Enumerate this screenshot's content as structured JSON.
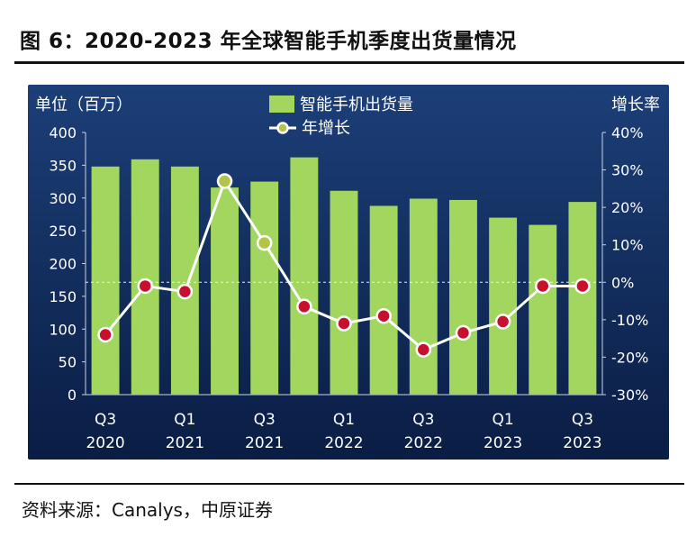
{
  "figure": {
    "title": "图 6：2020-2023 年全球智能手机季度出货量情况",
    "source": "资料来源：Canalys，中原证券"
  },
  "colors": {
    "background_top": "#1c3f78",
    "background_bottom": "#0a1d44",
    "bar": "#a2d65e",
    "line": "#ffffff",
    "marker_fill": "#c8102e",
    "marker_fill_positive": "#b2c54a",
    "text": "#ffffff"
  },
  "chart_data": {
    "type": "bar+line",
    "left_axis_label": "单位（百万）",
    "right_axis_label": "增长率",
    "ylim": [
      0,
      400
    ],
    "yticks": [
      0,
      50,
      100,
      150,
      200,
      250,
      300,
      350,
      400
    ],
    "y2lim": [
      -30,
      40
    ],
    "y2ticks": [
      "-30%",
      "-20%",
      "-10%",
      "0%",
      "10%",
      "20%",
      "30%",
      "40%"
    ],
    "y2tick_values": [
      -30,
      -20,
      -10,
      0,
      10,
      20,
      30,
      40
    ],
    "legend_placement": "top-center",
    "reference_line_y2": 0,
    "categories": [
      "Q3 2020",
      "Q4 2020",
      "Q1 2021",
      "Q2 2021",
      "Q3 2021",
      "Q4 2021",
      "Q1 2022",
      "Q2 2022",
      "Q3 2022",
      "Q4 2022",
      "Q1 2023",
      "Q2 2023",
      "Q3 2023"
    ],
    "xtick_labels": [
      {
        "index": 0,
        "line1": "Q3",
        "line2": "2020"
      },
      {
        "index": 2,
        "line1": "Q1",
        "line2": "2021"
      },
      {
        "index": 4,
        "line1": "Q3",
        "line2": "2021"
      },
      {
        "index": 6,
        "line1": "Q1",
        "line2": "2022"
      },
      {
        "index": 8,
        "line1": "Q3",
        "line2": "2022"
      },
      {
        "index": 10,
        "line1": "Q1",
        "line2": "2023"
      },
      {
        "index": 12,
        "line1": "Q3",
        "line2": "2023"
      }
    ],
    "series": [
      {
        "name": "智能手机出货量",
        "type": "bar",
        "axis": "left",
        "values": [
          348,
          359,
          348,
          316,
          325,
          362,
          311,
          288,
          299,
          297,
          270,
          259,
          294
        ]
      },
      {
        "name": "年增长",
        "type": "line",
        "axis": "right",
        "values": [
          -14,
          -1,
          -2.5,
          27,
          10.5,
          -6.5,
          -11,
          -9,
          -18,
          -13.5,
          -10.5,
          -1,
          -1
        ]
      }
    ]
  }
}
